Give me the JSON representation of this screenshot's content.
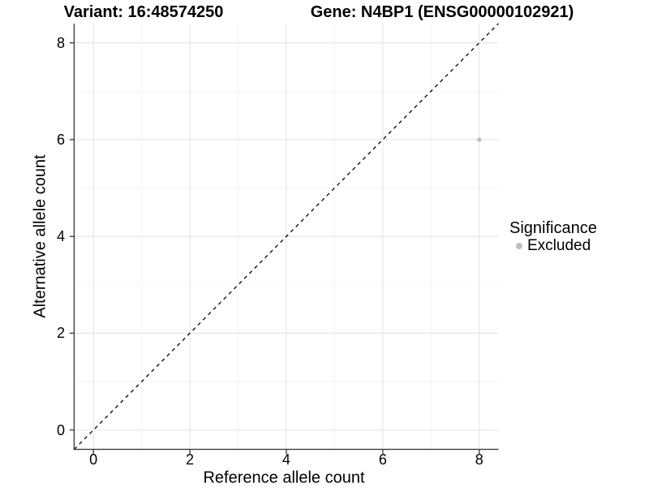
{
  "figure": {
    "background": "#ffffff",
    "title_left": "Variant: 16:48574250",
    "title_right": "Gene: N4BP1 (ENSG00000102921)"
  },
  "chart_data": {
    "type": "scatter",
    "title": "Variant: 16:48574250 / Gene: N4BP1 (ENSG00000102921)",
    "xlabel": "Reference allele count",
    "ylabel": "Alternative allele count",
    "xlim": [
      -0.4,
      8.4
    ],
    "ylim": [
      -0.4,
      8.4
    ],
    "x_ticks": [
      0,
      2,
      4,
      6,
      8
    ],
    "y_ticks": [
      0,
      2,
      4,
      6,
      8
    ],
    "x_minor_ticks": [
      1,
      3,
      5,
      7
    ],
    "y_minor_ticks": [
      1,
      3,
      5,
      7
    ],
    "grid": {
      "major_color": "#e6e6e6",
      "minor_color": "#f2f2f2",
      "background": "#ffffff"
    },
    "axis": {
      "line_color": "#3f3f3f",
      "tick_color": "#3f3f3f",
      "tick_length": 5.5
    },
    "identity_line": {
      "equation": "y = x",
      "slope": 1,
      "intercept": 0,
      "style": "dashed",
      "color": "#000000"
    },
    "series": [
      {
        "name": "Excluded",
        "color": "#bebebe",
        "point_radius": 2.7,
        "points": [
          {
            "x": 8,
            "y": 6
          }
        ]
      }
    ],
    "legend": {
      "title": "Significance",
      "position": "right",
      "items": [
        {
          "label": "Excluded",
          "color": "#bebebe"
        }
      ]
    }
  }
}
